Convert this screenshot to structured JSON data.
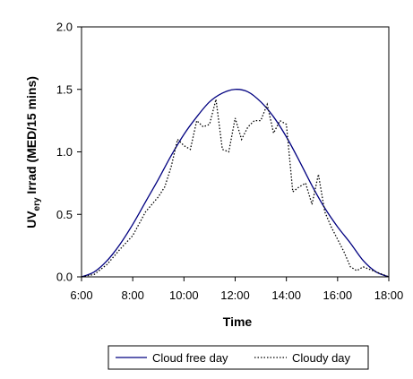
{
  "chart_data": {
    "type": "line",
    "xlabel": "Time",
    "ylabel_main": "UV",
    "ylabel_sub": "ery",
    "ylabel_rest": " Irrad (MED/15 mins)",
    "xlim": [
      6,
      18
    ],
    "ylim": [
      0,
      2
    ],
    "xticks": [
      {
        "value": 6,
        "label": "6:00"
      },
      {
        "value": 8,
        "label": "8:00"
      },
      {
        "value": 10,
        "label": "10:00"
      },
      {
        "value": 12,
        "label": "12:00"
      },
      {
        "value": 14,
        "label": "14:00"
      },
      {
        "value": 16,
        "label": "16:00"
      },
      {
        "value": 18,
        "label": "18:00"
      }
    ],
    "yticks": [
      {
        "value": 0.0,
        "label": "0.0"
      },
      {
        "value": 0.5,
        "label": "0.5"
      },
      {
        "value": 1.0,
        "label": "1.0"
      },
      {
        "value": 1.5,
        "label": "1.5"
      },
      {
        "value": 2.0,
        "label": "2.0"
      }
    ],
    "grid": false,
    "legend_position": "bottom",
    "series": [
      {
        "name": "Cloud free day",
        "color": "#000080",
        "style": "solid",
        "points": [
          [
            6.0,
            0.0
          ],
          [
            6.5,
            0.04
          ],
          [
            7.0,
            0.13
          ],
          [
            7.5,
            0.26
          ],
          [
            8.0,
            0.42
          ],
          [
            8.5,
            0.6
          ],
          [
            9.0,
            0.78
          ],
          [
            9.5,
            0.97
          ],
          [
            10.0,
            1.14
          ],
          [
            10.5,
            1.28
          ],
          [
            11.0,
            1.4
          ],
          [
            11.5,
            1.47
          ],
          [
            12.0,
            1.5
          ],
          [
            12.5,
            1.48
          ],
          [
            13.0,
            1.4
          ],
          [
            13.5,
            1.28
          ],
          [
            14.0,
            1.12
          ],
          [
            14.5,
            0.93
          ],
          [
            15.0,
            0.73
          ],
          [
            15.5,
            0.55
          ],
          [
            16.0,
            0.4
          ],
          [
            16.5,
            0.27
          ],
          [
            17.0,
            0.13
          ],
          [
            17.5,
            0.04
          ],
          [
            18.0,
            0.0
          ]
        ]
      },
      {
        "name": "Cloudy day",
        "color": "#000000",
        "style": "dotted",
        "points": [
          [
            6.0,
            0.0
          ],
          [
            6.5,
            0.02
          ],
          [
            7.0,
            0.1
          ],
          [
            7.5,
            0.22
          ],
          [
            8.0,
            0.33
          ],
          [
            8.5,
            0.52
          ],
          [
            8.75,
            0.58
          ],
          [
            9.0,
            0.64
          ],
          [
            9.25,
            0.72
          ],
          [
            9.5,
            0.88
          ],
          [
            9.75,
            1.1
          ],
          [
            10.0,
            1.05
          ],
          [
            10.25,
            1.02
          ],
          [
            10.5,
            1.25
          ],
          [
            10.75,
            1.2
          ],
          [
            11.0,
            1.22
          ],
          [
            11.25,
            1.42
          ],
          [
            11.5,
            1.02
          ],
          [
            11.75,
            1.0
          ],
          [
            12.0,
            1.27
          ],
          [
            12.25,
            1.1
          ],
          [
            12.5,
            1.2
          ],
          [
            12.75,
            1.25
          ],
          [
            13.0,
            1.25
          ],
          [
            13.25,
            1.38
          ],
          [
            13.5,
            1.15
          ],
          [
            13.75,
            1.25
          ],
          [
            14.0,
            1.22
          ],
          [
            14.25,
            0.68
          ],
          [
            14.5,
            0.72
          ],
          [
            14.75,
            0.75
          ],
          [
            15.0,
            0.58
          ],
          [
            15.25,
            0.82
          ],
          [
            15.5,
            0.52
          ],
          [
            15.75,
            0.4
          ],
          [
            16.0,
            0.3
          ],
          [
            16.25,
            0.2
          ],
          [
            16.5,
            0.08
          ],
          [
            16.75,
            0.05
          ],
          [
            17.0,
            0.08
          ],
          [
            17.25,
            0.06
          ],
          [
            17.5,
            0.04
          ],
          [
            18.0,
            0.0
          ]
        ]
      }
    ]
  }
}
